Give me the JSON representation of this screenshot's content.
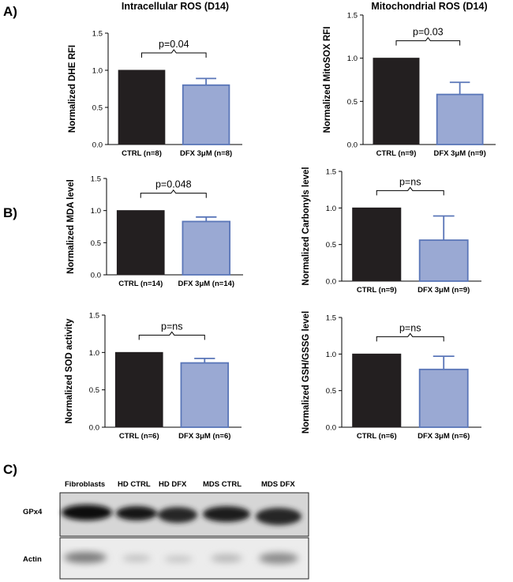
{
  "panels": {
    "A": "A)",
    "B": "B)",
    "C": "C)"
  },
  "colors": {
    "ctrl": "#231f20",
    "dfx": "#9aa9d3",
    "dfx_edge": "#5a76b8",
    "axis": "#000000"
  },
  "chart_data": [
    {
      "type": "bar",
      "title": "Intracellular ROS (D14)",
      "xlabel": "",
      "ylabel": "Normalized DHE RFI",
      "categories": [
        "CTRL (n=8)",
        "DFX 3μM (n=8)"
      ],
      "values": [
        1.0,
        0.8
      ],
      "errors": [
        0,
        0.09
      ],
      "yticks": [
        "0.0",
        "0.5",
        "1.0",
        "1.5"
      ],
      "ylim": [
        0,
        1.5
      ],
      "annotation": "p=0.04",
      "grid": false
    },
    {
      "type": "bar",
      "title": "Mitochondrial ROS (D14)",
      "xlabel": "",
      "ylabel": "Normalized MitoSOX RFI",
      "categories": [
        "CTRL (n=9)",
        "DFX 3μM (n=9)"
      ],
      "values": [
        1.0,
        0.58
      ],
      "errors": [
        0,
        0.14
      ],
      "yticks": [
        "0.0",
        "0.5",
        "1.0",
        "1.5"
      ],
      "ylim": [
        0,
        1.5
      ],
      "annotation": "p=0.03",
      "grid": false
    },
    {
      "type": "bar",
      "title": "",
      "xlabel": "",
      "ylabel": "Normalized MDA level",
      "categories": [
        "CTRL (n=14)",
        "DFX 3μM (n=14)"
      ],
      "values": [
        1.0,
        0.83
      ],
      "errors": [
        0,
        0.07
      ],
      "yticks": [
        "0.0",
        "0.5",
        "1.0",
        "1.5"
      ],
      "ylim": [
        0,
        1.5
      ],
      "annotation": "p=0.048",
      "grid": false
    },
    {
      "type": "bar",
      "title": "",
      "xlabel": "",
      "ylabel": "Normalized Carbonyls level",
      "categories": [
        "CTRL (n=9)",
        "DFX 3μM (n=9)"
      ],
      "values": [
        1.0,
        0.56
      ],
      "errors": [
        0,
        0.33
      ],
      "yticks": [
        "0.0",
        "0.5",
        "1.0",
        "1.5"
      ],
      "ylim": [
        0,
        1.5
      ],
      "annotation": "p=ns",
      "grid": false
    },
    {
      "type": "bar",
      "title": "",
      "xlabel": "",
      "ylabel": "Normalized SOD activity",
      "categories": [
        "CTRL (n=6)",
        "DFX 3μM (n=6)"
      ],
      "values": [
        1.0,
        0.86
      ],
      "errors": [
        0,
        0.06
      ],
      "yticks": [
        "0.0",
        "0.5",
        "1.0",
        "1.5"
      ],
      "ylim": [
        0,
        1.5
      ],
      "annotation": "p=ns",
      "grid": false
    },
    {
      "type": "bar",
      "title": "",
      "xlabel": "",
      "ylabel": "Normalized GSH/GSSG level",
      "categories": [
        "CTRL (n=6)",
        "DFX 3μM (n=6)"
      ],
      "values": [
        1.0,
        0.79
      ],
      "errors": [
        0,
        0.18
      ],
      "yticks": [
        "0.0",
        "0.5",
        "1.0",
        "1.5"
      ],
      "ylim": [
        0,
        1.5
      ],
      "annotation": "p=ns",
      "grid": false
    }
  ],
  "blot": {
    "lanes": [
      "Fibroblasts",
      "HD CTRL",
      "HD DFX",
      "MDS CTRL",
      "MDS DFX"
    ],
    "rows": [
      "GPx4",
      "Actin"
    ]
  }
}
